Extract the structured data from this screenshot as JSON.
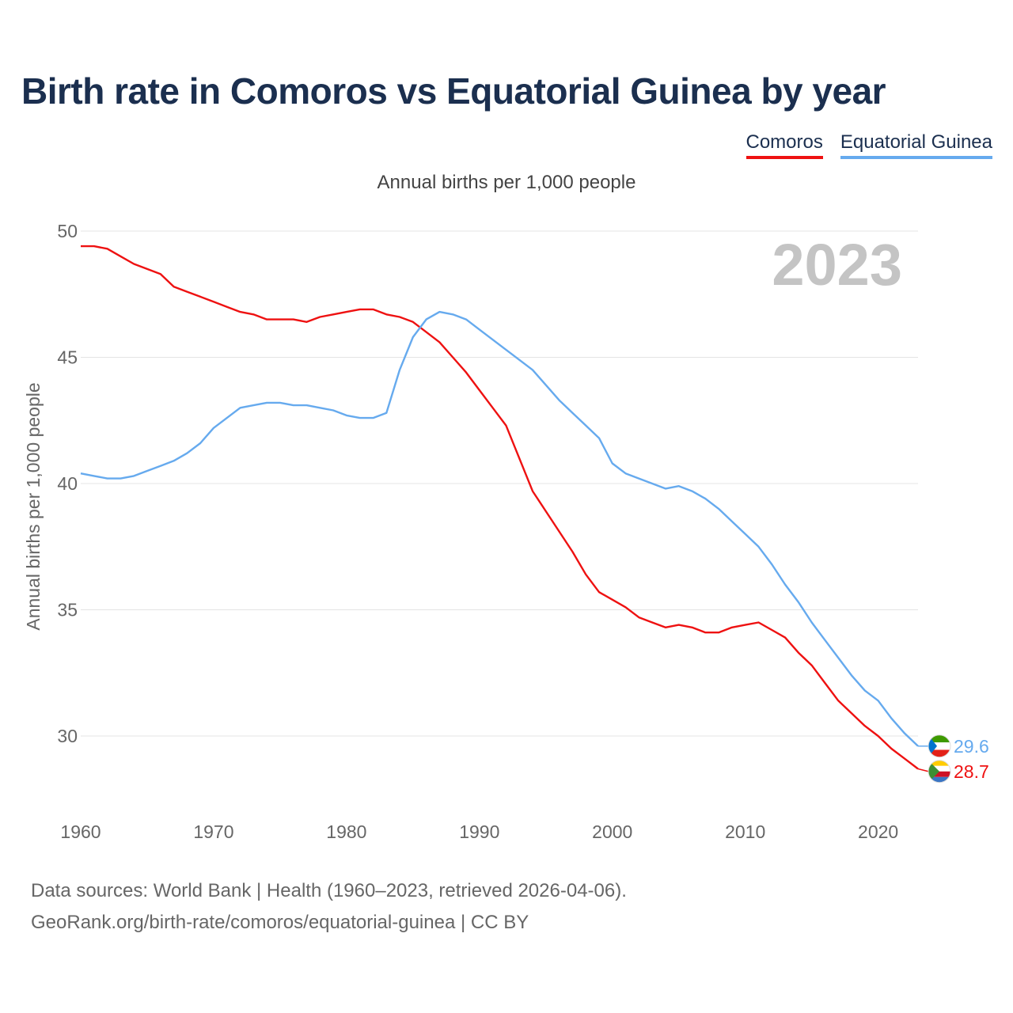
{
  "title": "Birth rate in Comoros vs Equatorial Guinea by year",
  "subtitle": "Annual births per 1,000 people",
  "legend": [
    {
      "name": "Comoros",
      "color": "#ee1111"
    },
    {
      "name": "Equatorial Guinea",
      "color": "#66aaee"
    }
  ],
  "footer": {
    "line1": "Data sources: World Bank | Health (1960–2023, retrieved 2026-04-06).",
    "line2": "GeoRank.org/birth-rate/comoros/equatorial-guinea | CC BY"
  },
  "chart_data": {
    "type": "line",
    "title": "Birth rate in Comoros vs Equatorial Guinea by year",
    "ylabel": "Annual births per 1,000 people",
    "xlabel": "",
    "ylim": [
      27.5,
      50
    ],
    "xlim": [
      1960,
      2023
    ],
    "yticks": [
      30,
      35,
      40,
      45,
      50
    ],
    "xticks": [
      1960,
      1970,
      1980,
      1990,
      2000,
      2010,
      2020
    ],
    "grid": true,
    "year_label": "2023",
    "x": [
      1960,
      1961,
      1962,
      1963,
      1964,
      1965,
      1966,
      1967,
      1968,
      1969,
      1970,
      1971,
      1972,
      1973,
      1974,
      1975,
      1976,
      1977,
      1978,
      1979,
      1980,
      1981,
      1982,
      1983,
      1984,
      1985,
      1986,
      1987,
      1988,
      1989,
      1990,
      1991,
      1992,
      1993,
      1994,
      1995,
      1996,
      1997,
      1998,
      1999,
      2000,
      2001,
      2002,
      2003,
      2004,
      2005,
      2006,
      2007,
      2008,
      2009,
      2010,
      2011,
      2012,
      2013,
      2014,
      2015,
      2016,
      2017,
      2018,
      2019,
      2020,
      2021,
      2022,
      2023
    ],
    "series": [
      {
        "name": "Comoros",
        "color": "#ee1111",
        "end_label": "28.7",
        "values": [
          49.4,
          49.4,
          49.3,
          49.0,
          48.7,
          48.5,
          48.3,
          47.8,
          47.6,
          47.4,
          47.2,
          47.0,
          46.8,
          46.7,
          46.5,
          46.5,
          46.5,
          46.4,
          46.6,
          46.7,
          46.8,
          46.9,
          46.9,
          46.7,
          46.6,
          46.4,
          46.0,
          45.6,
          45.0,
          44.4,
          43.7,
          43.0,
          42.3,
          41.0,
          39.7,
          38.9,
          38.1,
          37.3,
          36.4,
          35.7,
          35.4,
          35.1,
          34.7,
          34.5,
          34.3,
          34.4,
          34.3,
          34.1,
          34.1,
          34.3,
          34.4,
          34.5,
          34.2,
          33.9,
          33.3,
          32.8,
          32.1,
          31.4,
          30.9,
          30.4,
          30.0,
          29.5,
          29.1,
          28.7
        ]
      },
      {
        "name": "Equatorial Guinea",
        "color": "#66aaee",
        "end_label": "29.6",
        "values": [
          40.4,
          40.3,
          40.2,
          40.2,
          40.3,
          40.5,
          40.7,
          40.9,
          41.2,
          41.6,
          42.2,
          42.6,
          43.0,
          43.1,
          43.2,
          43.2,
          43.1,
          43.1,
          43.0,
          42.9,
          42.7,
          42.6,
          42.6,
          42.8,
          44.5,
          45.8,
          46.5,
          46.8,
          46.7,
          46.5,
          46.1,
          45.7,
          45.3,
          44.9,
          44.5,
          43.9,
          43.3,
          42.8,
          42.3,
          41.8,
          40.8,
          40.4,
          40.2,
          40.0,
          39.8,
          39.9,
          39.7,
          39.4,
          39.0,
          38.5,
          38.0,
          37.5,
          36.8,
          36.0,
          35.3,
          34.5,
          33.8,
          33.1,
          32.4,
          31.8,
          31.4,
          30.7,
          30.1,
          29.6
        ]
      }
    ]
  }
}
